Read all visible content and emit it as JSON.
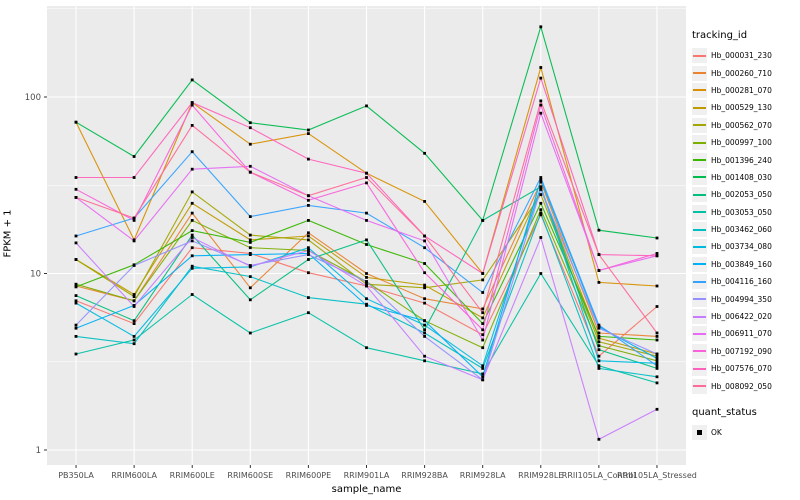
{
  "figure": {
    "panel_bg": "#EBEBEB",
    "grid_color": "#FFFFFF",
    "tick_color": "#333333",
    "tick_label_color": "#4D4D4D",
    "marker_color": "#000000"
  },
  "chart_data": {
    "type": "line",
    "title": "",
    "xlabel": "sample_name",
    "ylabel": "FPKM + 1",
    "y_scale": "log10",
    "y_ticks": [
      "1",
      "10",
      "100"
    ],
    "y_minor": [
      3.162,
      31.62,
      316.2
    ],
    "ylim": [
      1,
      330
    ],
    "grid": true,
    "legend_position": "right",
    "marker": {
      "shape": "square",
      "color": "#000000",
      "legend_label": "OK"
    },
    "categories": [
      "PB350LA",
      "RRIM600LA",
      "RRIM600LE",
      "RRIM600SE",
      "RRIM600PE",
      "RRIM901LA",
      "RRIM928BA",
      "RRIM928LA",
      "RRIM928LE",
      "RRII105LA_Control",
      "RRII105LA_Stressed"
    ],
    "series": [
      {
        "name": "Hb_000031_230",
        "color": "#F8766D",
        "values": [
          7.0,
          5.2,
          14.0,
          13.0,
          10.1,
          8.5,
          6.8,
          4.5,
          21.5,
          3.4,
          6.5
        ]
      },
      {
        "name": "Hb_000260_710",
        "color": "#EA8331",
        "values": [
          8.5,
          7.0,
          22.0,
          8.3,
          17.0,
          10.0,
          7.2,
          6.3,
          33.0,
          4.6,
          4.4
        ]
      },
      {
        "name": "Hb_000281_070",
        "color": "#D89000",
        "values": [
          72.0,
          15.5,
          93.0,
          54.0,
          62.0,
          37.0,
          25.6,
          10.0,
          147.0,
          8.9,
          8.5
        ]
      },
      {
        "name": "Hb_000529_130",
        "color": "#C09B00",
        "values": [
          12.0,
          7.6,
          25.0,
          15.5,
          16.3,
          9.5,
          8.6,
          5.6,
          30.0,
          4.3,
          3.5
        ]
      },
      {
        "name": "Hb_000562_070",
        "color": "#A3A500",
        "values": [
          12.0,
          7.4,
          29.0,
          16.5,
          15.5,
          8.7,
          8.3,
          9.2,
          28.0,
          4.1,
          3.4
        ]
      },
      {
        "name": "Hb_000997_100",
        "color": "#7CAE00",
        "values": [
          8.7,
          7.0,
          20.0,
          14.0,
          13.5,
          9.0,
          5.4,
          3.8,
          23.0,
          3.9,
          3.2
        ]
      },
      {
        "name": "Hb_001396_240",
        "color": "#39B600",
        "values": [
          8.4,
          11.2,
          17.5,
          15.0,
          20.0,
          14.6,
          11.4,
          5.2,
          25.0,
          4.4,
          4.2
        ]
      },
      {
        "name": "Hb_001408_030",
        "color": "#00BB4E",
        "values": [
          72.0,
          46.0,
          125.0,
          71.5,
          65.0,
          89.0,
          48.0,
          20.0,
          250.0,
          17.6,
          15.9
        ]
      },
      {
        "name": "Hb_002053_050",
        "color": "#00BF7D",
        "values": [
          7.5,
          5.4,
          16.5,
          7.1,
          12.0,
          15.5,
          4.8,
          20.0,
          31.0,
          3.7,
          2.9
        ]
      },
      {
        "name": "Hb_003053_050",
        "color": "#00C1A3",
        "values": [
          3.5,
          4.2,
          7.6,
          4.6,
          6.0,
          3.8,
          3.2,
          2.7,
          10.0,
          3.0,
          2.4
        ]
      },
      {
        "name": "Hb_003462_060",
        "color": "#00BFC4",
        "values": [
          4.4,
          4.0,
          11.0,
          9.6,
          7.3,
          6.7,
          4.6,
          2.9,
          22.0,
          2.9,
          2.6
        ]
      },
      {
        "name": "Hb_003734_080",
        "color": "#00BAE0",
        "values": [
          6.8,
          4.4,
          10.7,
          10.9,
          14.0,
          7.2,
          5.1,
          3.0,
          31.0,
          3.2,
          3.1
        ]
      },
      {
        "name": "Hb_003849_160",
        "color": "#00B0F6",
        "values": [
          4.9,
          6.6,
          12.6,
          12.8,
          13.0,
          6.6,
          5.4,
          2.6,
          34.0,
          5.0,
          3.3
        ]
      },
      {
        "name": "Hb_004116_160",
        "color": "#35A2FF",
        "values": [
          16.3,
          20.6,
          49.0,
          21.0,
          24.3,
          22.0,
          14.0,
          7.8,
          35.0,
          5.1,
          3.0
        ]
      },
      {
        "name": "Hb_004994_350",
        "color": "#9590FF",
        "values": [
          5.1,
          11.1,
          15.3,
          11.1,
          12.8,
          9.0,
          4.4,
          2.5,
          30.0,
          4.9,
          3.5
        ]
      },
      {
        "name": "Hb_006422_020",
        "color": "#C77CFF",
        "values": [
          14.9,
          6.5,
          16.0,
          11.0,
          13.5,
          8.5,
          3.4,
          2.5,
          16.0,
          1.15,
          1.7
        ]
      },
      {
        "name": "Hb_006911_070",
        "color": "#E76BF3",
        "values": [
          27.0,
          15.3,
          39.0,
          40.5,
          27.6,
          20.0,
          15.3,
          4.2,
          81.0,
          10.4,
          12.6
        ]
      },
      {
        "name": "Hb_007192_090",
        "color": "#FA62DB",
        "values": [
          30.0,
          20.0,
          90.0,
          37.5,
          26.0,
          32.6,
          10.1,
          4.8,
          90.0,
          10.4,
          13.0
        ]
      },
      {
        "name": "Hb_007576_070",
        "color": "#FF62BC",
        "values": [
          35.0,
          35.0,
          93.0,
          67.0,
          44.5,
          37.0,
          16.3,
          10.0,
          128.0,
          12.8,
          12.6
        ]
      },
      {
        "name": "Hb_008092_050",
        "color": "#FF6A98",
        "values": [
          27.0,
          20.6,
          69.0,
          37.5,
          27.6,
          35.0,
          16.3,
          6.0,
          95.0,
          12.8,
          4.6
        ]
      }
    ]
  },
  "legend": {
    "tracking_title": "tracking_id",
    "quant_title": "quant_status",
    "quant_items": [
      {
        "label": "OK"
      }
    ]
  }
}
